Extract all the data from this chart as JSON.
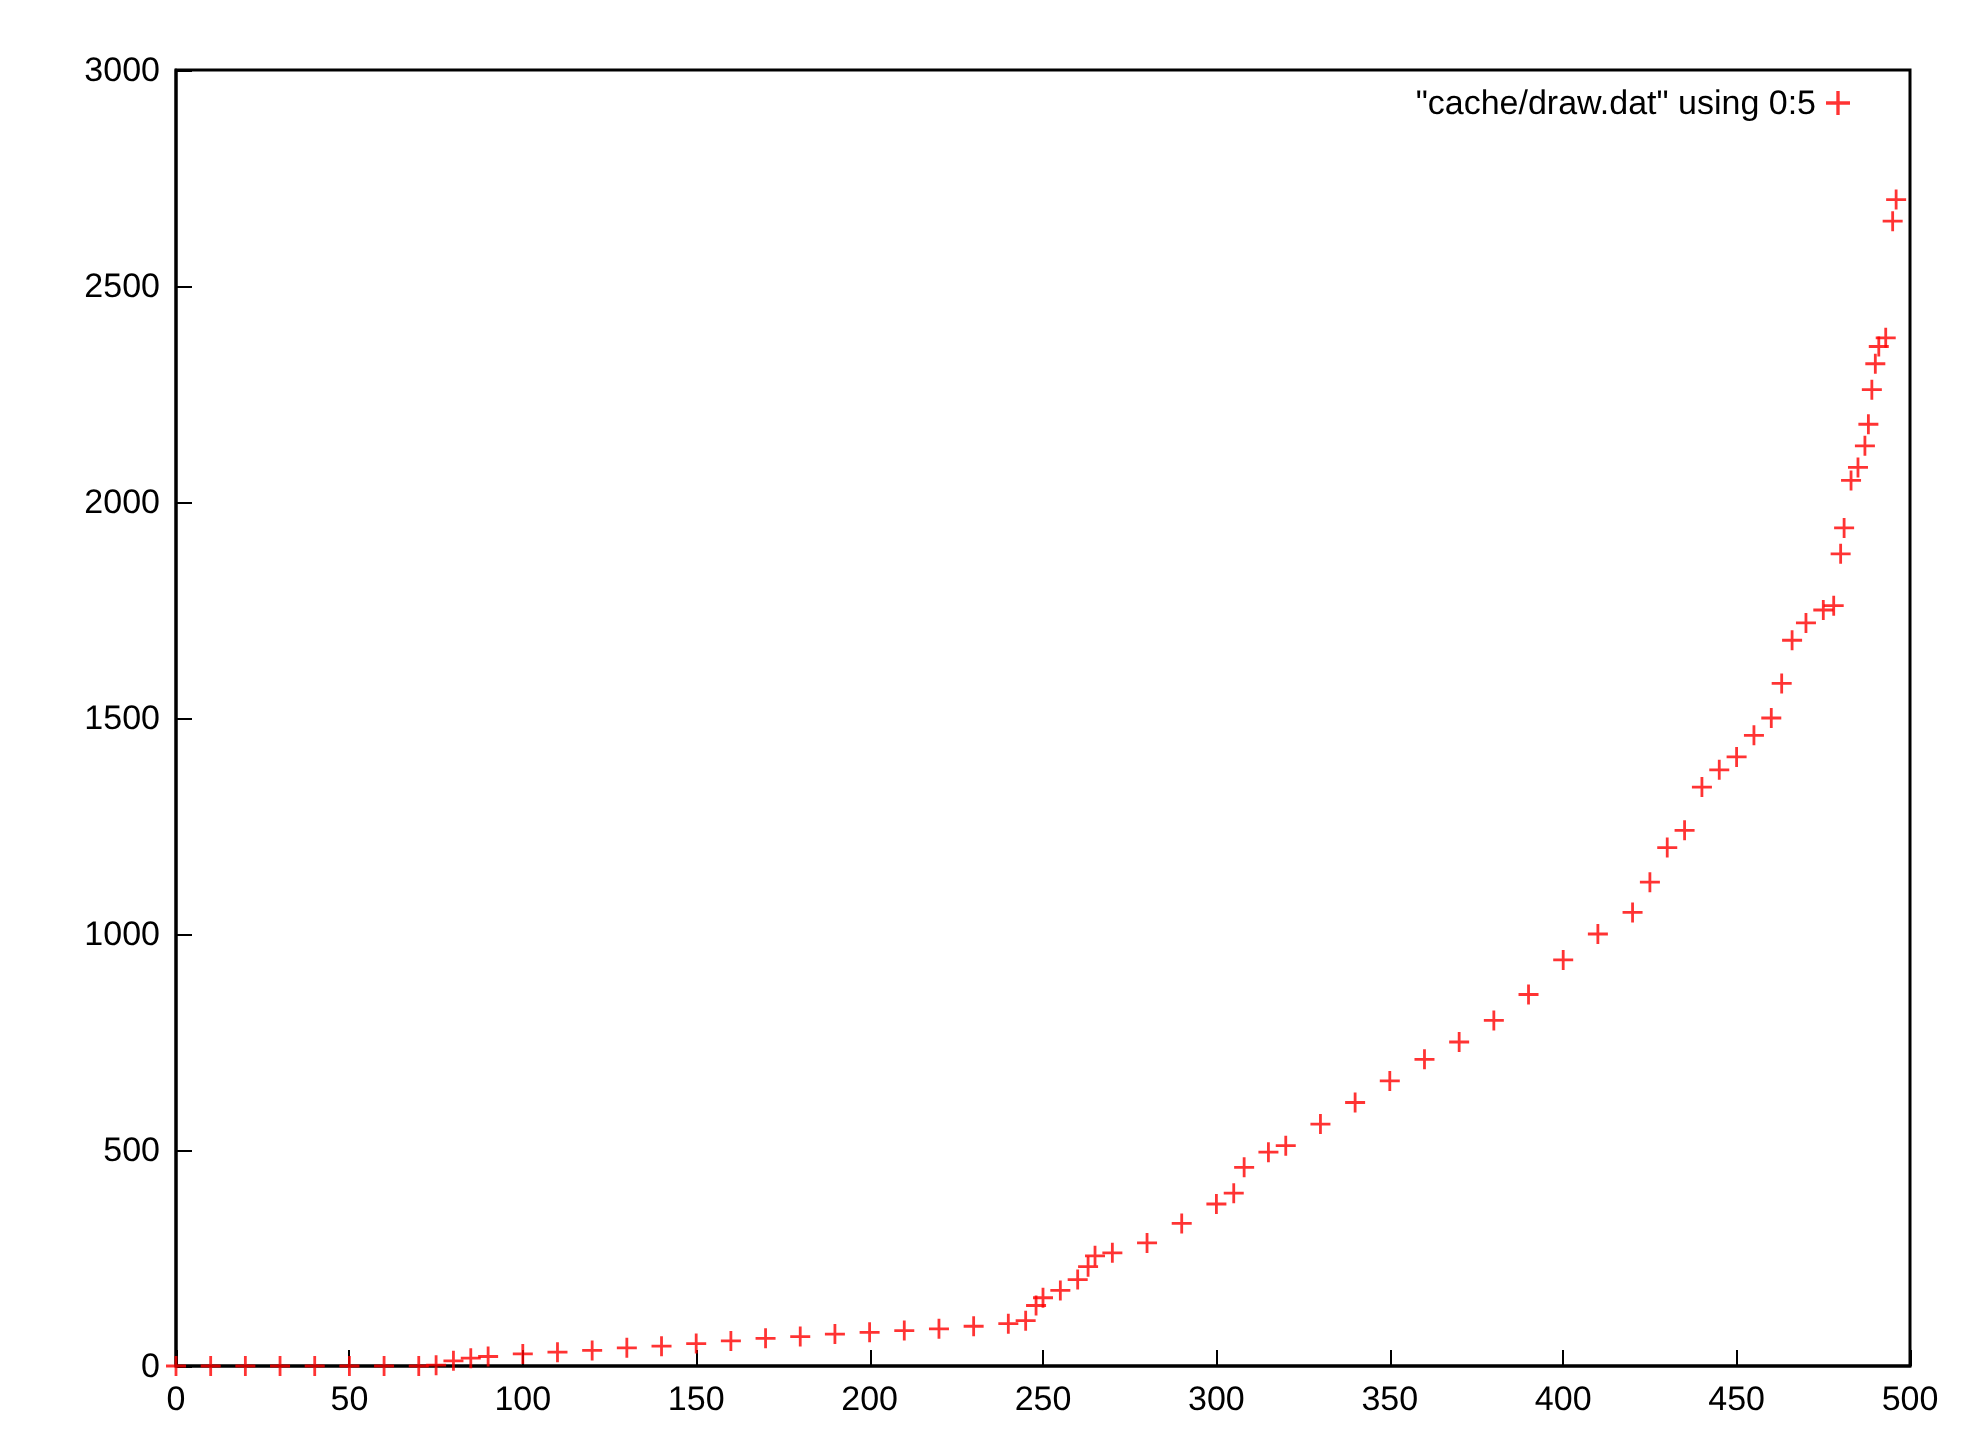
{
  "chart_data": {
    "type": "scatter",
    "marker": "cross",
    "legend": "top right",
    "grid": false,
    "xlim": [
      0,
      500
    ],
    "xticks": [
      0,
      50,
      100,
      150,
      200,
      250,
      300,
      350,
      400,
      450,
      500
    ],
    "ylim": [
      0,
      3000
    ],
    "yticks": [
      0,
      500,
      1000,
      1500,
      2000,
      2500,
      3000
    ],
    "series": [
      {
        "name": "\"cache/draw.dat\" using 0:5",
        "color": "#ff0000",
        "x": [
          0,
          10,
          20,
          30,
          40,
          50,
          60,
          70,
          75,
          80,
          85,
          90,
          100,
          110,
          120,
          130,
          140,
          150,
          160,
          170,
          180,
          190,
          200,
          210,
          220,
          230,
          240,
          245,
          248,
          250,
          255,
          260,
          263,
          265,
          270,
          280,
          290,
          300,
          305,
          308,
          315,
          320,
          330,
          340,
          350,
          360,
          370,
          380,
          390,
          400,
          410,
          420,
          425,
          430,
          435,
          440,
          445,
          450,
          455,
          460,
          463,
          466,
          470,
          475,
          478,
          480,
          481,
          483,
          485,
          487,
          488,
          489,
          490,
          491,
          493,
          495,
          496
        ],
        "values": [
          0,
          0,
          0,
          0,
          0,
          0,
          0,
          0,
          2,
          12,
          18,
          22,
          28,
          32,
          36,
          42,
          46,
          52,
          58,
          64,
          68,
          74,
          78,
          82,
          86,
          92,
          98,
          105,
          140,
          158,
          175,
          200,
          230,
          255,
          262,
          285,
          330,
          375,
          400,
          460,
          495,
          510,
          560,
          610,
          660,
          710,
          750,
          800,
          860,
          940,
          1000,
          1050,
          1120,
          1200,
          1240,
          1340,
          1380,
          1410,
          1460,
          1500,
          1580,
          1680,
          1720,
          1750,
          1760,
          1880,
          1940,
          2050,
          2080,
          2130,
          2180,
          2260,
          2320,
          2360,
          2380,
          2650,
          2700
        ]
      }
    ]
  }
}
